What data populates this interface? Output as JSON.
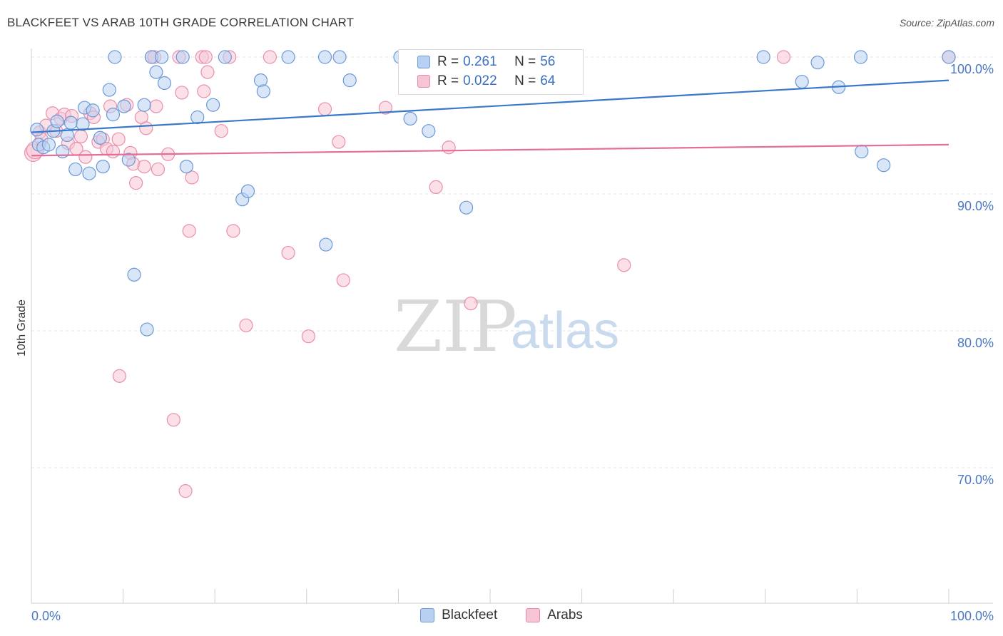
{
  "header": {
    "title": "BLACKFEET VS ARAB 10TH GRADE CORRELATION CHART",
    "source": "Source: ZipAtlas.com"
  },
  "watermark": {
    "zip": "ZIP",
    "atlas": "atlas"
  },
  "legend": {
    "r_label": "R =",
    "n_label": "N =",
    "rows": [
      {
        "r": "0.261",
        "n": "56",
        "fill": "#b8d0f2",
        "stroke": "#6f9ad8"
      },
      {
        "r": "0.022",
        "n": "64",
        "fill": "#f6c4d4",
        "stroke": "#e88aa6"
      }
    ]
  },
  "colors": {
    "blackfeet_fill": "#b9d1f2",
    "blackfeet_stroke": "#6b98d6",
    "blackfeet_line": "#3a78c9",
    "arabs_fill": "#f7c6d5",
    "arabs_stroke": "#e98faa",
    "arabs_line": "#e36e99",
    "tick_text": "#4a79c4",
    "grid": "#e2e2e2"
  },
  "chart_data": {
    "type": "scatter",
    "title": "BLACKFEET VS ARAB 10TH GRADE CORRELATION CHART",
    "xlabel": "",
    "ylabel": "10th Grade",
    "xlim": [
      0,
      100
    ],
    "ylim": [
      61.5,
      101.5
    ],
    "x_tick_labels": [
      "0.0%",
      "100.0%"
    ],
    "y_ticks": [
      100,
      90,
      80,
      70
    ],
    "y_tick_labels": [
      "100.0%",
      "90.0%",
      "80.0%",
      "70.0%"
    ],
    "grid": "horizontal dashed",
    "legend_position": "top-center",
    "series": [
      {
        "name": "Blackfeet",
        "r": 0.261,
        "n": 56,
        "trend": {
          "x": [
            0,
            100
          ],
          "y": [
            94.5,
            98.3
          ]
        },
        "points": [
          [
            0.6,
            94.7
          ],
          [
            0.8,
            93.6
          ],
          [
            1.3,
            93.4
          ],
          [
            1.9,
            93.6
          ],
          [
            2.4,
            94.6
          ],
          [
            2.8,
            95.3
          ],
          [
            3.4,
            93.1
          ],
          [
            3.9,
            94.3
          ],
          [
            4.3,
            95.2
          ],
          [
            4.8,
            91.8
          ],
          [
            5.6,
            95.1
          ],
          [
            5.8,
            96.3
          ],
          [
            6.3,
            91.5
          ],
          [
            6.7,
            96.1
          ],
          [
            7.5,
            94.1
          ],
          [
            7.8,
            92.0
          ],
          [
            8.5,
            97.6
          ],
          [
            8.9,
            95.8
          ],
          [
            9.1,
            100.0
          ],
          [
            10.1,
            96.4
          ],
          [
            10.6,
            92.5
          ],
          [
            11.2,
            84.1
          ],
          [
            12.3,
            96.5
          ],
          [
            12.6,
            80.1
          ],
          [
            13.1,
            100.0
          ],
          [
            13.6,
            98.9
          ],
          [
            14.2,
            100.0
          ],
          [
            14.5,
            98.1
          ],
          [
            16.5,
            100.0
          ],
          [
            16.9,
            92.0
          ],
          [
            18.1,
            95.6
          ],
          [
            19.8,
            96.5
          ],
          [
            21.1,
            100.0
          ],
          [
            23.0,
            89.6
          ],
          [
            23.6,
            90.2
          ],
          [
            25.0,
            98.3
          ],
          [
            25.3,
            97.5
          ],
          [
            28.0,
            100.0
          ],
          [
            32.0,
            100.0
          ],
          [
            32.1,
            86.3
          ],
          [
            33.6,
            100.0
          ],
          [
            34.7,
            98.3
          ],
          [
            40.2,
            100.0
          ],
          [
            41.3,
            95.5
          ],
          [
            43.3,
            94.6
          ],
          [
            47.3,
            100.0
          ],
          [
            47.4,
            89.0
          ],
          [
            48.0,
            100.0
          ],
          [
            79.8,
            100.0
          ],
          [
            84.0,
            98.2
          ],
          [
            85.7,
            99.6
          ],
          [
            88.0,
            97.8
          ],
          [
            90.4,
            100.0
          ],
          [
            90.5,
            93.1
          ],
          [
            92.9,
            92.1
          ],
          [
            100.0,
            100.0
          ]
        ]
      },
      {
        "name": "Arabs",
        "r": 0.022,
        "n": 64,
        "trend": {
          "x": [
            0,
            100
          ],
          "y": [
            92.8,
            93.6
          ]
        },
        "points": [
          [
            0.2,
            93.0
          ],
          [
            0.4,
            93.2
          ],
          [
            0.9,
            94.5
          ],
          [
            1.1,
            94.0
          ],
          [
            1.6,
            95.0
          ],
          [
            2.3,
            95.9
          ],
          [
            2.7,
            94.6
          ],
          [
            3.2,
            95.5
          ],
          [
            3.6,
            95.8
          ],
          [
            4.0,
            93.7
          ],
          [
            4.4,
            95.7
          ],
          [
            4.9,
            93.3
          ],
          [
            5.4,
            94.2
          ],
          [
            5.9,
            92.7
          ],
          [
            6.4,
            95.9
          ],
          [
            6.8,
            95.6
          ],
          [
            7.3,
            93.8
          ],
          [
            7.8,
            94.0
          ],
          [
            8.2,
            93.3
          ],
          [
            8.6,
            96.4
          ],
          [
            8.9,
            93.1
          ],
          [
            9.5,
            94.0
          ],
          [
            9.6,
            76.7
          ],
          [
            10.4,
            96.5
          ],
          [
            10.8,
            93.0
          ],
          [
            11.1,
            92.2
          ],
          [
            11.4,
            90.8
          ],
          [
            12.0,
            95.6
          ],
          [
            12.3,
            92.0
          ],
          [
            12.5,
            94.8
          ],
          [
            13.1,
            100.0
          ],
          [
            13.4,
            100.0
          ],
          [
            13.6,
            96.4
          ],
          [
            13.8,
            91.8
          ],
          [
            14.9,
            92.9
          ],
          [
            15.5,
            73.5
          ],
          [
            16.1,
            100.0
          ],
          [
            16.4,
            97.4
          ],
          [
            16.8,
            68.3
          ],
          [
            17.2,
            87.3
          ],
          [
            17.5,
            91.2
          ],
          [
            18.6,
            100.0
          ],
          [
            18.8,
            97.5
          ],
          [
            19.0,
            100.0
          ],
          [
            19.2,
            98.9
          ],
          [
            20.7,
            94.6
          ],
          [
            21.6,
            100.0
          ],
          [
            22.0,
            87.3
          ],
          [
            23.4,
            80.4
          ],
          [
            26.0,
            100.0
          ],
          [
            28.0,
            85.7
          ],
          [
            30.2,
            79.6
          ],
          [
            32.0,
            96.2
          ],
          [
            33.5,
            93.8
          ],
          [
            34.0,
            83.7
          ],
          [
            38.6,
            96.3
          ],
          [
            44.1,
            90.5
          ],
          [
            45.5,
            93.4
          ],
          [
            47.9,
            82.0
          ],
          [
            52.4,
            100.0
          ],
          [
            59.3,
            100.0
          ],
          [
            64.6,
            84.8
          ],
          [
            82.0,
            100.0
          ],
          [
            100.0,
            100.0
          ]
        ]
      }
    ]
  },
  "bottom_legend": [
    {
      "label": "Blackfeet",
      "fill": "#b8d0f2",
      "stroke": "#6f9ad8"
    },
    {
      "label": "Arabs",
      "fill": "#f6c4d4",
      "stroke": "#e88aa6"
    }
  ]
}
